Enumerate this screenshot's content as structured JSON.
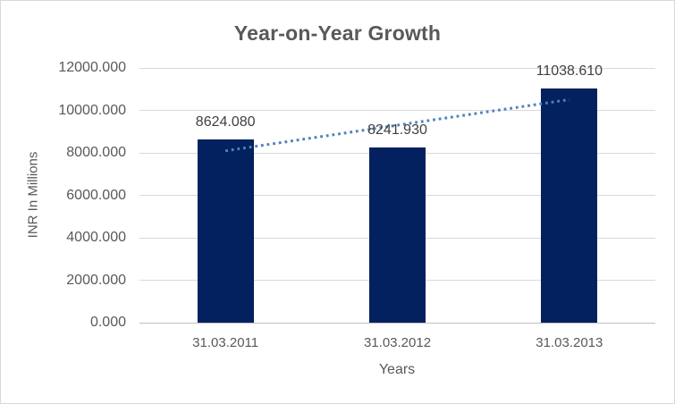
{
  "chart": {
    "title": "Year-on-Year Growth"
  },
  "chart_data": {
    "type": "bar",
    "title": "Year-on-Year Growth",
    "xlabel": "Years",
    "ylabel": "INR In Millions",
    "categories": [
      "31.03.2011",
      "31.03.2012",
      "31.03.2013"
    ],
    "values": [
      8624.08,
      8241.93,
      11038.61
    ],
    "value_labels": [
      "8624.080",
      "8241.930",
      "11038.610"
    ],
    "ylim": [
      0,
      12000
    ],
    "ytick_step": 2000,
    "ytick_labels": [
      "0.000",
      "2000.000",
      "4000.000",
      "6000.000",
      "8000.000",
      "10000.000",
      "12000.000"
    ],
    "grid": "horizontal",
    "legend_position": "none",
    "trendline": {
      "type": "linear",
      "style": "dotted"
    },
    "colors": {
      "bar": "#02215E",
      "trendline": "#4F81BD",
      "gridline": "#D9D9D9",
      "axis_line": "#BFBFBF",
      "text": "#595959",
      "data_label": "#404040",
      "background": "#FFFFFF",
      "border": "#D9D9D9"
    }
  }
}
